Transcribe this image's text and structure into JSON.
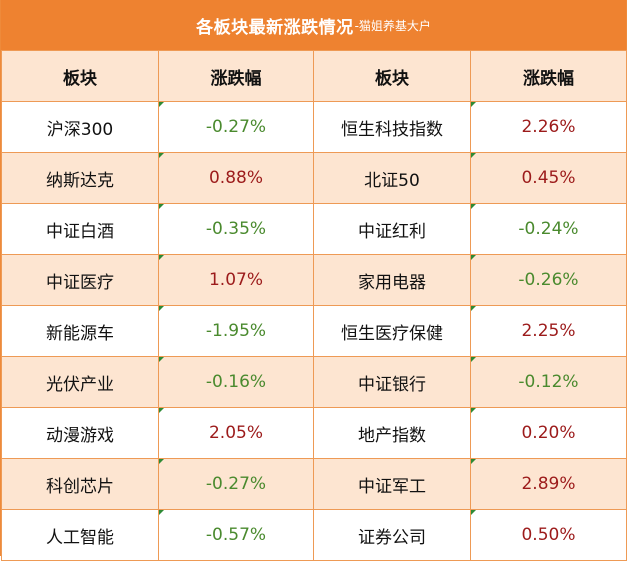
{
  "title": {
    "main": "各板块最新涨跌情况",
    "sub": "-猫姐养基大户"
  },
  "headers": [
    "板块",
    "涨跌幅",
    "板块",
    "涨跌幅"
  ],
  "rows": [
    {
      "left_name": "沪深300",
      "left_change": "-0.27%",
      "left_dir": "down",
      "right_name": "恒生科技指数",
      "right_change": "2.26%",
      "right_dir": "up"
    },
    {
      "left_name": "纳斯达克",
      "left_change": "0.88%",
      "left_dir": "up",
      "right_name": "北证50",
      "right_change": "0.45%",
      "right_dir": "up"
    },
    {
      "left_name": "中证白酒",
      "left_change": "-0.35%",
      "left_dir": "down",
      "right_name": "中证红利",
      "right_change": "-0.24%",
      "right_dir": "down"
    },
    {
      "left_name": "中证医疗",
      "left_change": "1.07%",
      "left_dir": "up",
      "right_name": "家用电器",
      "right_change": "-0.26%",
      "right_dir": "down"
    },
    {
      "left_name": "新能源车",
      "left_change": "-1.95%",
      "left_dir": "down",
      "right_name": "恒生医疗保健",
      "right_change": "2.25%",
      "right_dir": "up"
    },
    {
      "left_name": "光伏产业",
      "left_change": "-0.16%",
      "left_dir": "down",
      "right_name": "中证银行",
      "right_change": "-0.12%",
      "right_dir": "down"
    },
    {
      "left_name": "动漫游戏",
      "left_change": "2.05%",
      "left_dir": "up",
      "right_name": "地产指数",
      "right_change": "0.20%",
      "right_dir": "up"
    },
    {
      "left_name": "科创芯片",
      "left_change": "-0.27%",
      "left_dir": "down",
      "right_name": "中证军工",
      "right_change": "2.89%",
      "right_dir": "up"
    },
    {
      "left_name": "人工智能",
      "left_change": "-0.57%",
      "left_dir": "down",
      "right_name": "证券公司",
      "right_change": "0.50%",
      "right_dir": "up"
    }
  ],
  "colors": {
    "header_bar": "#ee8230",
    "band": "#fde5d1",
    "up": "#9c1b1b",
    "down": "#4a8a2e"
  }
}
